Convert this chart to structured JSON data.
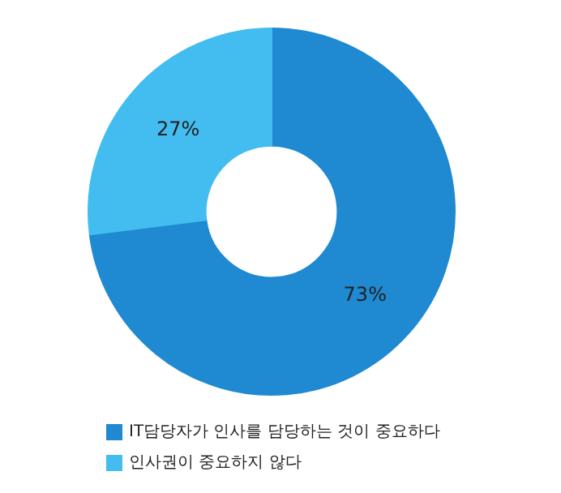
{
  "chart_data": {
    "type": "donut",
    "categories": [
      "IT담당자가 인사를 담당하는 것이 중요하다",
      "인사권이 중요하지 않다"
    ],
    "values": [
      73,
      27
    ],
    "colors": [
      "#1f8ad2",
      "#43bdf0"
    ],
    "value_labels": [
      "73%",
      "27%"
    ],
    "legend": "bottom"
  }
}
